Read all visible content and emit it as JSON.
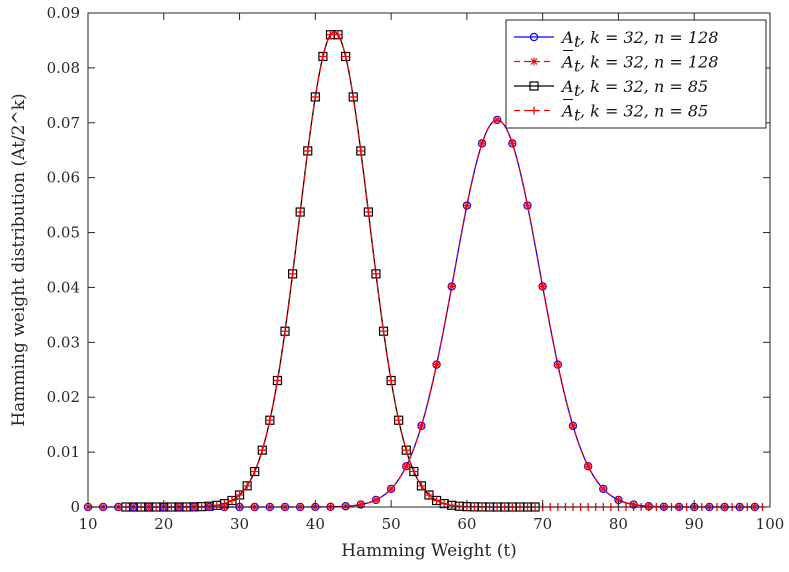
{
  "chart_data": {
    "type": "line",
    "xlabel": "Hamming Weight (t)",
    "ylabel": "Hamming weight distribution (At/2^k)",
    "xlim": [
      10,
      100
    ],
    "ylim": [
      0,
      0.09
    ],
    "xticks": [
      "10",
      "20",
      "30",
      "40",
      "50",
      "60",
      "70",
      "80",
      "90",
      "100"
    ],
    "yticks": [
      "0",
      "0.01",
      "0.02",
      "0.03",
      "0.04",
      "0.05",
      "0.06",
      "0.07",
      "0.08",
      "0.09"
    ],
    "grid": false,
    "legend_position": "top-right",
    "series": [
      {
        "name": "A_t, k = 32, n = 128",
        "label_sym": "A",
        "label_sub": "t",
        "label_bar": false,
        "label_rest": ", k = 32, n = 128",
        "color": "#0000ff",
        "dash": "solid",
        "marker": "circle",
        "mean": 64,
        "variance": 32,
        "x_start": 10,
        "x_end": 98,
        "x_step": 2,
        "line_start": 10,
        "line_end": 98
      },
      {
        "name": "Ā_t, k = 32, n = 128",
        "label_sym": "A",
        "label_sub": "t",
        "label_bar": true,
        "label_rest": ", k = 32, n = 128",
        "color": "#ff0000",
        "dash": "dashed",
        "marker": "star",
        "mean": 64,
        "variance": 32,
        "x_start": 10,
        "x_end": 98,
        "x_step": 2,
        "line_start": 10,
        "line_end": 98
      },
      {
        "name": "A_t, k = 32, n = 85",
        "label_sym": "A",
        "label_sub": "t",
        "label_bar": false,
        "label_rest": ", k = 32, n = 85",
        "color": "#000000",
        "dash": "solid",
        "marker": "square",
        "mean": 42.5,
        "variance": 21.25,
        "x_start": 15,
        "x_end": 69,
        "x_step": 1,
        "line_start": 15,
        "line_end": 69
      },
      {
        "name": "Ā_t, k = 32, n = 85",
        "label_sym": "A",
        "label_sub": "t",
        "label_bar": true,
        "label_rest": ", k = 32, n = 85",
        "color": "#ff0000",
        "dash": "dashed",
        "marker": "plus",
        "mean": 42.5,
        "variance": 21.25,
        "x_start": 15,
        "x_end": 99,
        "x_step": 1,
        "line_start": 15,
        "line_end": 69
      }
    ]
  }
}
